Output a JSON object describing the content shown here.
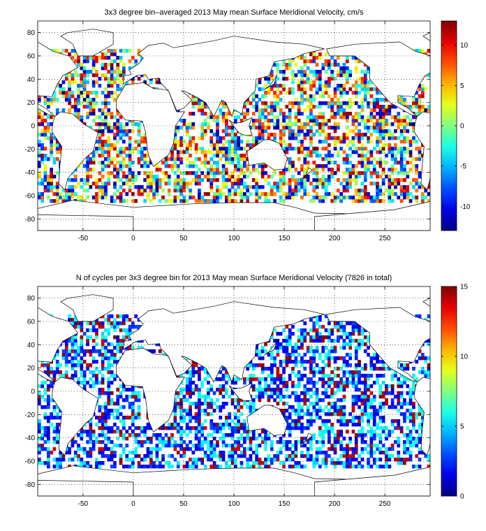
{
  "chart_data": [
    {
      "type": "heatmap",
      "title": "3x3 degree bin–averaged 2013 May mean Surface Meridional Velocity, cm/s",
      "xlabel": "",
      "ylabel": "",
      "xlim": [
        -95,
        295
      ],
      "ylim": [
        -90,
        90
      ],
      "xticks": [
        -50,
        0,
        50,
        100,
        150,
        200,
        250
      ],
      "yticks": [
        -80,
        -60,
        -40,
        -20,
        0,
        20,
        40,
        60,
        80
      ],
      "grid": true,
      "bin_size_deg": 3,
      "colorbar": {
        "min": -13,
        "max": 13,
        "ticks": [
          -10,
          -5,
          0,
          5,
          10
        ],
        "colormap": "jet"
      },
      "value_kind": "velocity"
    },
    {
      "type": "heatmap",
      "title": "N of cycles per 3x3 degree bin for 2013 May mean Surface Meridional Velocity (7826 in total)",
      "xlabel": "",
      "ylabel": "",
      "xlim": [
        -95,
        295
      ],
      "ylim": [
        -90,
        90
      ],
      "xticks": [
        -50,
        0,
        50,
        100,
        150,
        200,
        250
      ],
      "yticks": [
        -80,
        -60,
        -40,
        -20,
        0,
        20,
        40,
        60,
        80
      ],
      "grid": true,
      "bin_size_deg": 3,
      "colorbar": {
        "min": 0,
        "max": 15,
        "ticks": [
          0,
          5,
          10,
          15
        ],
        "colormap": "jet"
      },
      "value_kind": "count"
    }
  ]
}
